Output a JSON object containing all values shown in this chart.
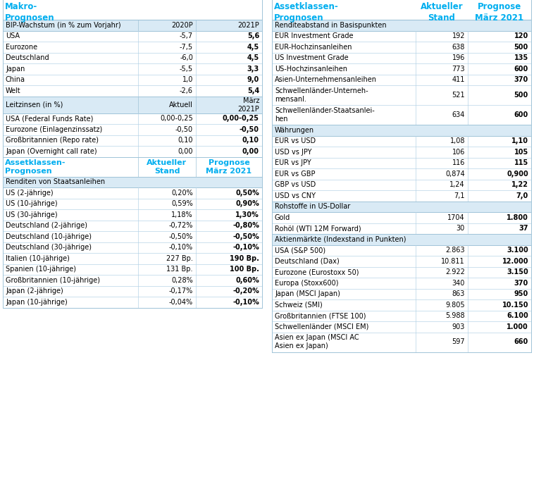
{
  "teal": "#00AEEF",
  "black": "#000000",
  "section_bg": "#D9EAF5",
  "white": "#FFFFFF",
  "border_color": "#A0C4D8",
  "row_line_color": "#B8D4E8",
  "left_title": "Makro-\nPrognosen",
  "bip_header": "BIP-Wachstum (in % zum Vorjahr)",
  "bip_col2": "2020P",
  "bip_col3": "2021P",
  "bip_rows": [
    [
      "USA",
      "-5,7",
      "5,6"
    ],
    [
      "Eurozone",
      "-7,5",
      "4,5"
    ],
    [
      "Deutschland",
      "-6,0",
      "4,5"
    ],
    [
      "Japan",
      "-5,5",
      "3,3"
    ],
    [
      "China",
      "1,0",
      "9,0"
    ],
    [
      "Welt",
      "-2,6",
      "5,4"
    ]
  ],
  "leitz_header": "Leitzinsen (in %)",
  "leitz_col2": "Aktuell",
  "leitz_col3": "März\n2021P",
  "leitz_rows": [
    [
      "USA (Federal Funds Rate)",
      "0,00-0,25",
      "0,00-0,25"
    ],
    [
      "Eurozone (Einlagenzinssatz)",
      "-0,50",
      "-0,50"
    ],
    [
      "Großbritannien (Repo rate)",
      "0,10",
      "0,10"
    ],
    [
      "Japan (Overnight call rate)",
      "0,00",
      "0,00"
    ]
  ],
  "asset_title": "Assetklassen-\nPrognosen",
  "asset_col2": "Aktueller\nStand",
  "asset_col3": "Prognose\nMärz 2021",
  "renditen_header": "Renditen von Staatsanleihen",
  "renditen_rows": [
    [
      "US (2-jährige)",
      "0,20%",
      "0,50%"
    ],
    [
      "US (10-jährige)",
      "0,59%",
      "0,90%"
    ],
    [
      "US (30-jährige)",
      "1,18%",
      "1,30%"
    ],
    [
      "Deutschland (2-jährige)",
      "-0,72%",
      "-0,80%"
    ],
    [
      "Deutschland (10-jährige)",
      "-0,50%",
      "-0,50%"
    ],
    [
      "Deutschland (30-jährige)",
      "-0,10%",
      "-0,10%"
    ],
    [
      "Italien (10-jährige)",
      "227 Bp.",
      "190 Bp."
    ],
    [
      "Spanien (10-jährige)",
      "131 Bp.",
      "100 Bp."
    ],
    [
      "Großbritannien (10-jährige)",
      "0,28%",
      "0,60%"
    ],
    [
      "Japan (2-jährige)",
      "-0,17%",
      "-0,20%"
    ],
    [
      "Japan (10-jährige)",
      "-0,04%",
      "-0,10%"
    ]
  ],
  "right_title": "Assetklassen-\nPrognosen",
  "right_col2": "Aktueller\nStand",
  "right_col3": "Prognose\nMärz 2021",
  "right_sections": [
    {
      "header": "Renditeabstand in Basispunkten",
      "rows": [
        [
          "EUR Investment Grade",
          "192",
          "120"
        ],
        [
          "EUR-Hochzinsanleihen",
          "638",
          "500"
        ],
        [
          "US Investment Grade",
          "196",
          "135"
        ],
        [
          "US-Hochzinsanleihen",
          "773",
          "600"
        ],
        [
          "Asien-Unternehmensanleihen",
          "411",
          "370"
        ],
        [
          "Schwellenländer-Unterneh-\nmensanl.",
          "521",
          "500"
        ],
        [
          "Schwellenländer-Staatsanlei-\nhen",
          "634",
          "600"
        ]
      ]
    },
    {
      "header": "Währungen",
      "rows": [
        [
          "EUR vs USD",
          "1,08",
          "1,10"
        ],
        [
          "USD vs JPY",
          "106",
          "105"
        ],
        [
          "EUR vs JPY",
          "116",
          "115"
        ],
        [
          "EUR vs GBP",
          "0,874",
          "0,900"
        ],
        [
          "GBP vs USD",
          "1,24",
          "1,22"
        ],
        [
          "USD vs CNY",
          "7,1",
          "7,0"
        ]
      ]
    },
    {
      "header": "Rohstoffe in US-Dollar",
      "rows": [
        [
          "Gold",
          "1704",
          "1.800"
        ],
        [
          "Rohöl (WTI 12M Forward)",
          "30",
          "37"
        ]
      ]
    },
    {
      "header": "Aktienmärkte (Indexstand in Punkten)",
      "rows": [
        [
          "USA (S&P 500)",
          "2.863",
          "3.100"
        ],
        [
          "Deutschland (Dax)",
          "10.811",
          "12.000"
        ],
        [
          "Eurozone (Eurostoxx 50)",
          "2.922",
          "3.150"
        ],
        [
          "Europa (Stoxx600)",
          "340",
          "370"
        ],
        [
          "Japan (MSCI Japan)",
          "863",
          "950"
        ],
        [
          "Schweiz (SMI)",
          "9.805",
          "10.150"
        ],
        [
          "Großbritannien (FTSE 100)",
          "5.988",
          "6.100"
        ],
        [
          "Schwellenländer (MSCI EM)",
          "903",
          "1.000"
        ],
        [
          "Asien ex Japan (MSCI AC\nAsien ex Japan)",
          "597",
          "660"
        ]
      ]
    }
  ]
}
